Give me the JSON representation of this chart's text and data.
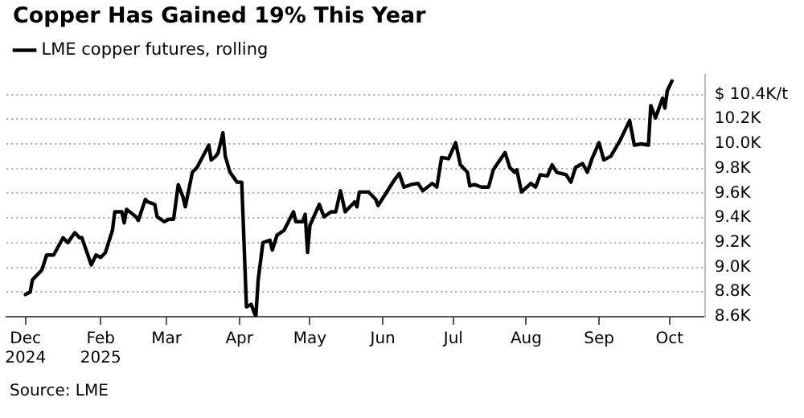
{
  "chart_data": {
    "type": "line",
    "title": "Copper Has Gained 19% This Year",
    "annotations": [
      "Source: LME"
    ],
    "x": [
      "2024-12-31",
      "2025-01-02",
      "2025-01-03",
      "2025-01-07",
      "2025-01-09",
      "2025-01-12",
      "2025-01-16",
      "2025-01-18",
      "2025-01-21",
      "2025-01-23",
      "2025-01-24",
      "2025-01-28",
      "2025-01-30",
      "2025-02-01",
      "2025-02-03",
      "2025-02-06",
      "2025-02-07",
      "2025-02-10",
      "2025-02-11",
      "2025-02-12",
      "2025-02-16",
      "2025-02-17",
      "2025-02-20",
      "2025-02-21",
      "2025-02-24",
      "2025-02-25",
      "2025-02-28",
      "2025-03-02",
      "2025-03-04",
      "2025-03-06",
      "2025-03-08",
      "2025-03-09",
      "2025-03-12",
      "2025-03-14",
      "2025-03-19",
      "2025-03-20",
      "2025-03-22",
      "2025-03-23",
      "2025-03-25",
      "2025-03-26",
      "2025-03-28",
      "2025-03-31",
      "2025-04-02",
      "2025-04-04",
      "2025-04-06",
      "2025-04-08",
      "2025-04-09",
      "2025-04-11",
      "2025-04-14",
      "2025-04-15",
      "2025-04-17",
      "2025-04-20",
      "2025-04-24",
      "2025-04-25",
      "2025-04-28",
      "2025-04-29",
      "2025-04-30",
      "2025-05-01",
      "2025-05-05",
      "2025-05-07",
      "2025-05-10",
      "2025-05-12",
      "2025-05-14",
      "2025-05-16",
      "2025-05-20",
      "2025-05-21",
      "2025-05-22",
      "2025-05-26",
      "2025-05-29",
      "2025-05-30",
      "2025-06-04",
      "2025-06-06",
      "2025-06-08",
      "2025-06-10",
      "2025-06-13",
      "2025-06-16",
      "2025-06-18",
      "2025-06-22",
      "2025-06-24",
      "2025-06-26",
      "2025-06-29",
      "2025-07-02",
      "2025-07-04",
      "2025-07-07",
      "2025-07-08",
      "2025-07-10",
      "2025-07-13",
      "2025-07-16",
      "2025-07-18",
      "2025-07-23",
      "2025-07-25",
      "2025-07-27",
      "2025-07-28",
      "2025-07-30",
      "2025-08-03",
      "2025-08-05",
      "2025-08-07",
      "2025-08-10",
      "2025-08-12",
      "2025-08-14",
      "2025-08-18",
      "2025-08-20",
      "2025-08-22",
      "2025-08-25",
      "2025-08-27",
      "2025-08-29",
      "2025-09-01",
      "2025-09-03",
      "2025-09-06",
      "2025-09-10",
      "2025-09-14",
      "2025-09-16",
      "2025-09-19",
      "2025-09-22",
      "2025-09-23",
      "2025-09-25",
      "2025-09-28",
      "2025-09-29",
      "2025-09-30",
      "2025-10-02"
    ],
    "series": [
      {
        "name": "LME copper futures, rolling",
        "color": "#000000",
        "values": [
          8780,
          8800,
          8900,
          8980,
          9100,
          9100,
          9240,
          9200,
          9280,
          9240,
          9240,
          9020,
          9100,
          9080,
          9120,
          9300,
          9450,
          9450,
          9360,
          9470,
          9410,
          9380,
          9550,
          9530,
          9510,
          9410,
          9370,
          9390,
          9390,
          9670,
          9570,
          9490,
          9770,
          9810,
          9990,
          9870,
          9900,
          9930,
          10090,
          9900,
          9770,
          9690,
          9690,
          8680,
          8700,
          8600,
          8900,
          9200,
          9220,
          9140,
          9260,
          9300,
          9450,
          9370,
          9370,
          9430,
          9120,
          9340,
          9510,
          9410,
          9450,
          9450,
          9620,
          9450,
          9530,
          9490,
          9610,
          9610,
          9550,
          9500,
          9650,
          9710,
          9760,
          9650,
          9670,
          9680,
          9620,
          9680,
          9650,
          9890,
          9880,
          10010,
          9830,
          9770,
          9660,
          9670,
          9650,
          9650,
          9790,
          9930,
          9810,
          9770,
          9790,
          9610,
          9680,
          9650,
          9750,
          9740,
          9830,
          9770,
          9750,
          9690,
          9810,
          9840,
          9770,
          9880,
          10010,
          9870,
          9900,
          10030,
          10190,
          9990,
          10000,
          9990,
          10310,
          10210,
          10370,
          10290,
          10430,
          10510
        ]
      }
    ],
    "xlim": [
      "2024-12-23",
      "2025-10-16"
    ],
    "xticks": [
      {
        "value": "2024-12-31",
        "label": "Dec 2024"
      },
      {
        "value": "2025-02-01",
        "label": "Feb 2025"
      },
      {
        "value": "2025-03-01",
        "label": "Mar"
      },
      {
        "value": "2025-04-01",
        "label": "Apr"
      },
      {
        "value": "2025-05-01",
        "label": "May"
      },
      {
        "value": "2025-06-01",
        "label": "Jun"
      },
      {
        "value": "2025-07-01",
        "label": "Jul"
      },
      {
        "value": "2025-08-01",
        "label": "Aug"
      },
      {
        "value": "2025-09-01",
        "label": "Sep"
      },
      {
        "value": "2025-10-01",
        "label": "Oct"
      }
    ],
    "ylim": [
      8600,
      10560
    ],
    "yticks": [
      {
        "value": 8600,
        "label": "8.6K"
      },
      {
        "value": 8800,
        "label": "8.8K"
      },
      {
        "value": 9000,
        "label": "9.0K"
      },
      {
        "value": 9200,
        "label": "9.2K"
      },
      {
        "value": 9400,
        "label": "9.4K"
      },
      {
        "value": 9600,
        "label": "9.6K"
      },
      {
        "value": 9800,
        "label": "9.8K"
      },
      {
        "value": 10000,
        "label": "10.0K"
      },
      {
        "value": 10200,
        "label": "10.2K"
      },
      {
        "value": 10400,
        "label": "$ 10.4K/t"
      }
    ],
    "grid": "y",
    "legend": "top left",
    "marker": "none",
    "line_style": "solid"
  }
}
